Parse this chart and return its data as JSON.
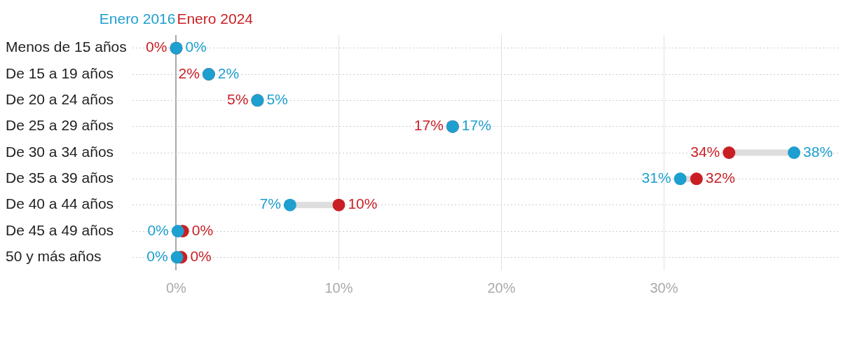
{
  "chart_data": {
    "type": "scatter",
    "orientation": "horizontal",
    "categories": [
      "Menos de 15 años",
      "De 15 a 19 años",
      "De 20 a 24 años",
      "De 25 a 29 años",
      "De 30 a 34 años",
      "De 35 a 39 años",
      "De 40 a 44 años",
      "De 45 a 49 años",
      "50 y más años"
    ],
    "series": [
      {
        "name": "Enero 2016",
        "color": "#1d9fcf",
        "values": [
          0,
          2,
          5,
          17,
          38,
          31,
          7,
          0.1,
          0.05
        ],
        "value_labels": [
          "0%",
          "2%",
          "5%",
          "17%",
          "38%",
          "31%",
          "7%",
          "0%",
          "0%"
        ]
      },
      {
        "name": "Enero 2024",
        "color": "#c91f24",
        "values": [
          0,
          2,
          5,
          17,
          34,
          32,
          10,
          0.4,
          0.3
        ],
        "value_labels": [
          "0%",
          "2%",
          "5%",
          "17%",
          "34%",
          "32%",
          "10%",
          "0%",
          "0%"
        ]
      }
    ],
    "xlim": [
      -2.7,
      40.8
    ],
    "xticks": [
      {
        "value": 0,
        "label": "0%"
      },
      {
        "value": 10,
        "label": "10%"
      },
      {
        "value": 20,
        "label": "20%"
      },
      {
        "value": 30,
        "label": "30%"
      }
    ],
    "grid": true,
    "legend": "top left",
    "marker": "circle"
  }
}
